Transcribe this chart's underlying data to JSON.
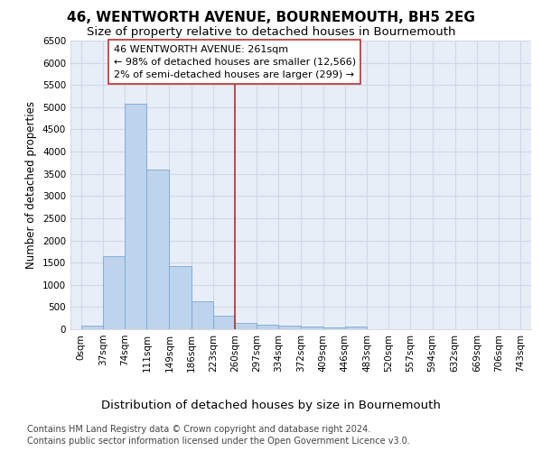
{
  "title": "46, WENTWORTH AVENUE, BOURNEMOUTH, BH5 2EG",
  "subtitle": "Size of property relative to detached houses in Bournemouth",
  "xlabel": "Distribution of detached houses by size in Bournemouth",
  "ylabel": "Number of detached properties",
  "footer_line1": "Contains HM Land Registry data © Crown copyright and database right 2024.",
  "footer_line2": "Contains public sector information licensed under the Open Government Licence v3.0.",
  "bin_labels": [
    "0sqm",
    "37sqm",
    "74sqm",
    "111sqm",
    "149sqm",
    "186sqm",
    "223sqm",
    "260sqm",
    "297sqm",
    "334sqm",
    "372sqm",
    "409sqm",
    "446sqm",
    "483sqm",
    "520sqm",
    "557sqm",
    "594sqm",
    "632sqm",
    "669sqm",
    "706sqm",
    "743sqm"
  ],
  "bar_values": [
    75,
    1650,
    5080,
    3600,
    1420,
    620,
    300,
    150,
    110,
    80,
    65,
    45,
    65,
    0,
    0,
    0,
    0,
    0,
    0,
    0
  ],
  "bar_color": "#bed3ec",
  "bar_edge_color": "#7aa8d4",
  "vline_x": 260,
  "vline_color": "#b03030",
  "annotation_text": "46 WENTWORTH AVENUE: 261sqm\n← 98% of detached houses are smaller (12,566)\n2% of semi-detached houses are larger (299) →",
  "annotation_box_color": "white",
  "annotation_box_edge": "#c03030",
  "ylim": [
    0,
    6500
  ],
  "yticks": [
    0,
    500,
    1000,
    1500,
    2000,
    2500,
    3000,
    3500,
    4000,
    4500,
    5000,
    5500,
    6000,
    6500
  ],
  "grid_color": "#d0d8e8",
  "plot_bg_color": "#e8eef8",
  "fig_bg_color": "#ffffff",
  "title_fontsize": 11,
  "subtitle_fontsize": 9.5,
  "xlabel_fontsize": 9.5,
  "ylabel_fontsize": 8.5,
  "tick_fontsize": 7.5,
  "footer_fontsize": 7,
  "annotation_fontsize": 8
}
